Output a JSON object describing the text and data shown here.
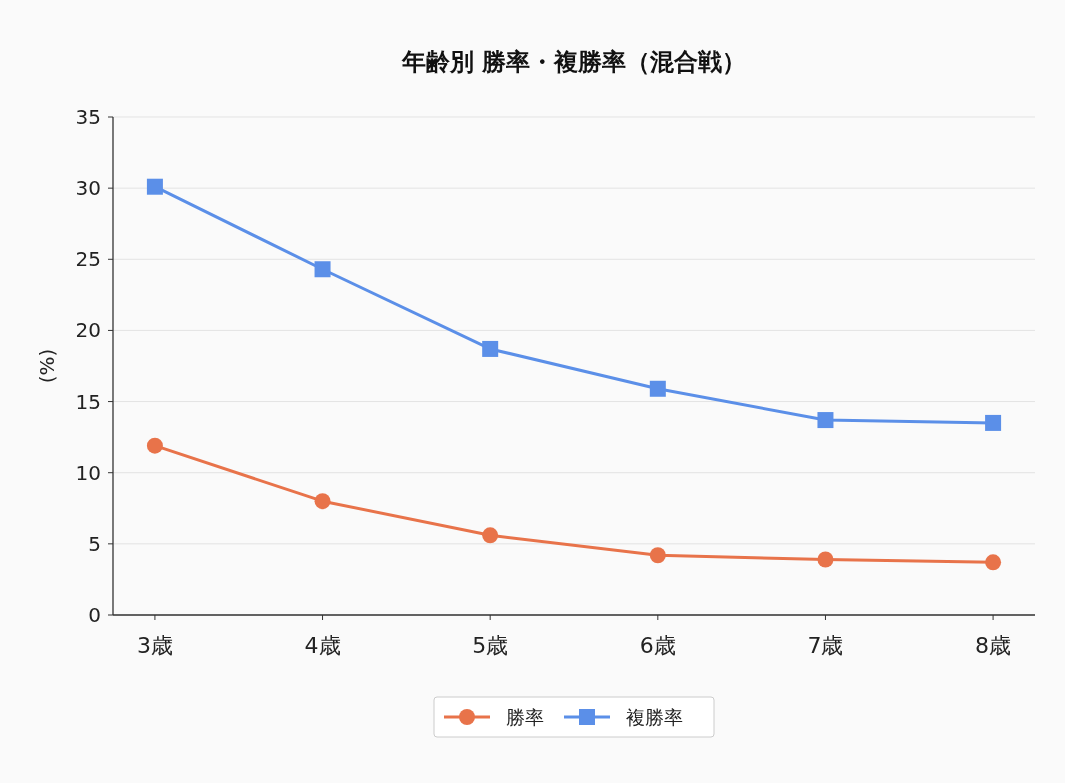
{
  "chart_data": {
    "type": "line",
    "title": "年齢別 勝率・複勝率（混合戦）",
    "ylabel": "(%)",
    "categories": [
      "3歳",
      "4歳",
      "5歳",
      "6歳",
      "7歳",
      "8歳"
    ],
    "series": [
      {
        "name": "勝率",
        "color": "#e8734a",
        "marker": "circle",
        "values": [
          11.9,
          8.0,
          5.6,
          4.2,
          3.9,
          3.7
        ]
      },
      {
        "name": "複勝率",
        "color": "#5b8fe8",
        "marker": "square",
        "values": [
          30.1,
          24.3,
          18.7,
          15.9,
          13.7,
          13.5
        ]
      }
    ],
    "ylim": [
      0,
      35
    ],
    "yticks": [
      0,
      5,
      10,
      15,
      20,
      25,
      30,
      35
    ],
    "grid": "y",
    "legend": "bottom"
  }
}
